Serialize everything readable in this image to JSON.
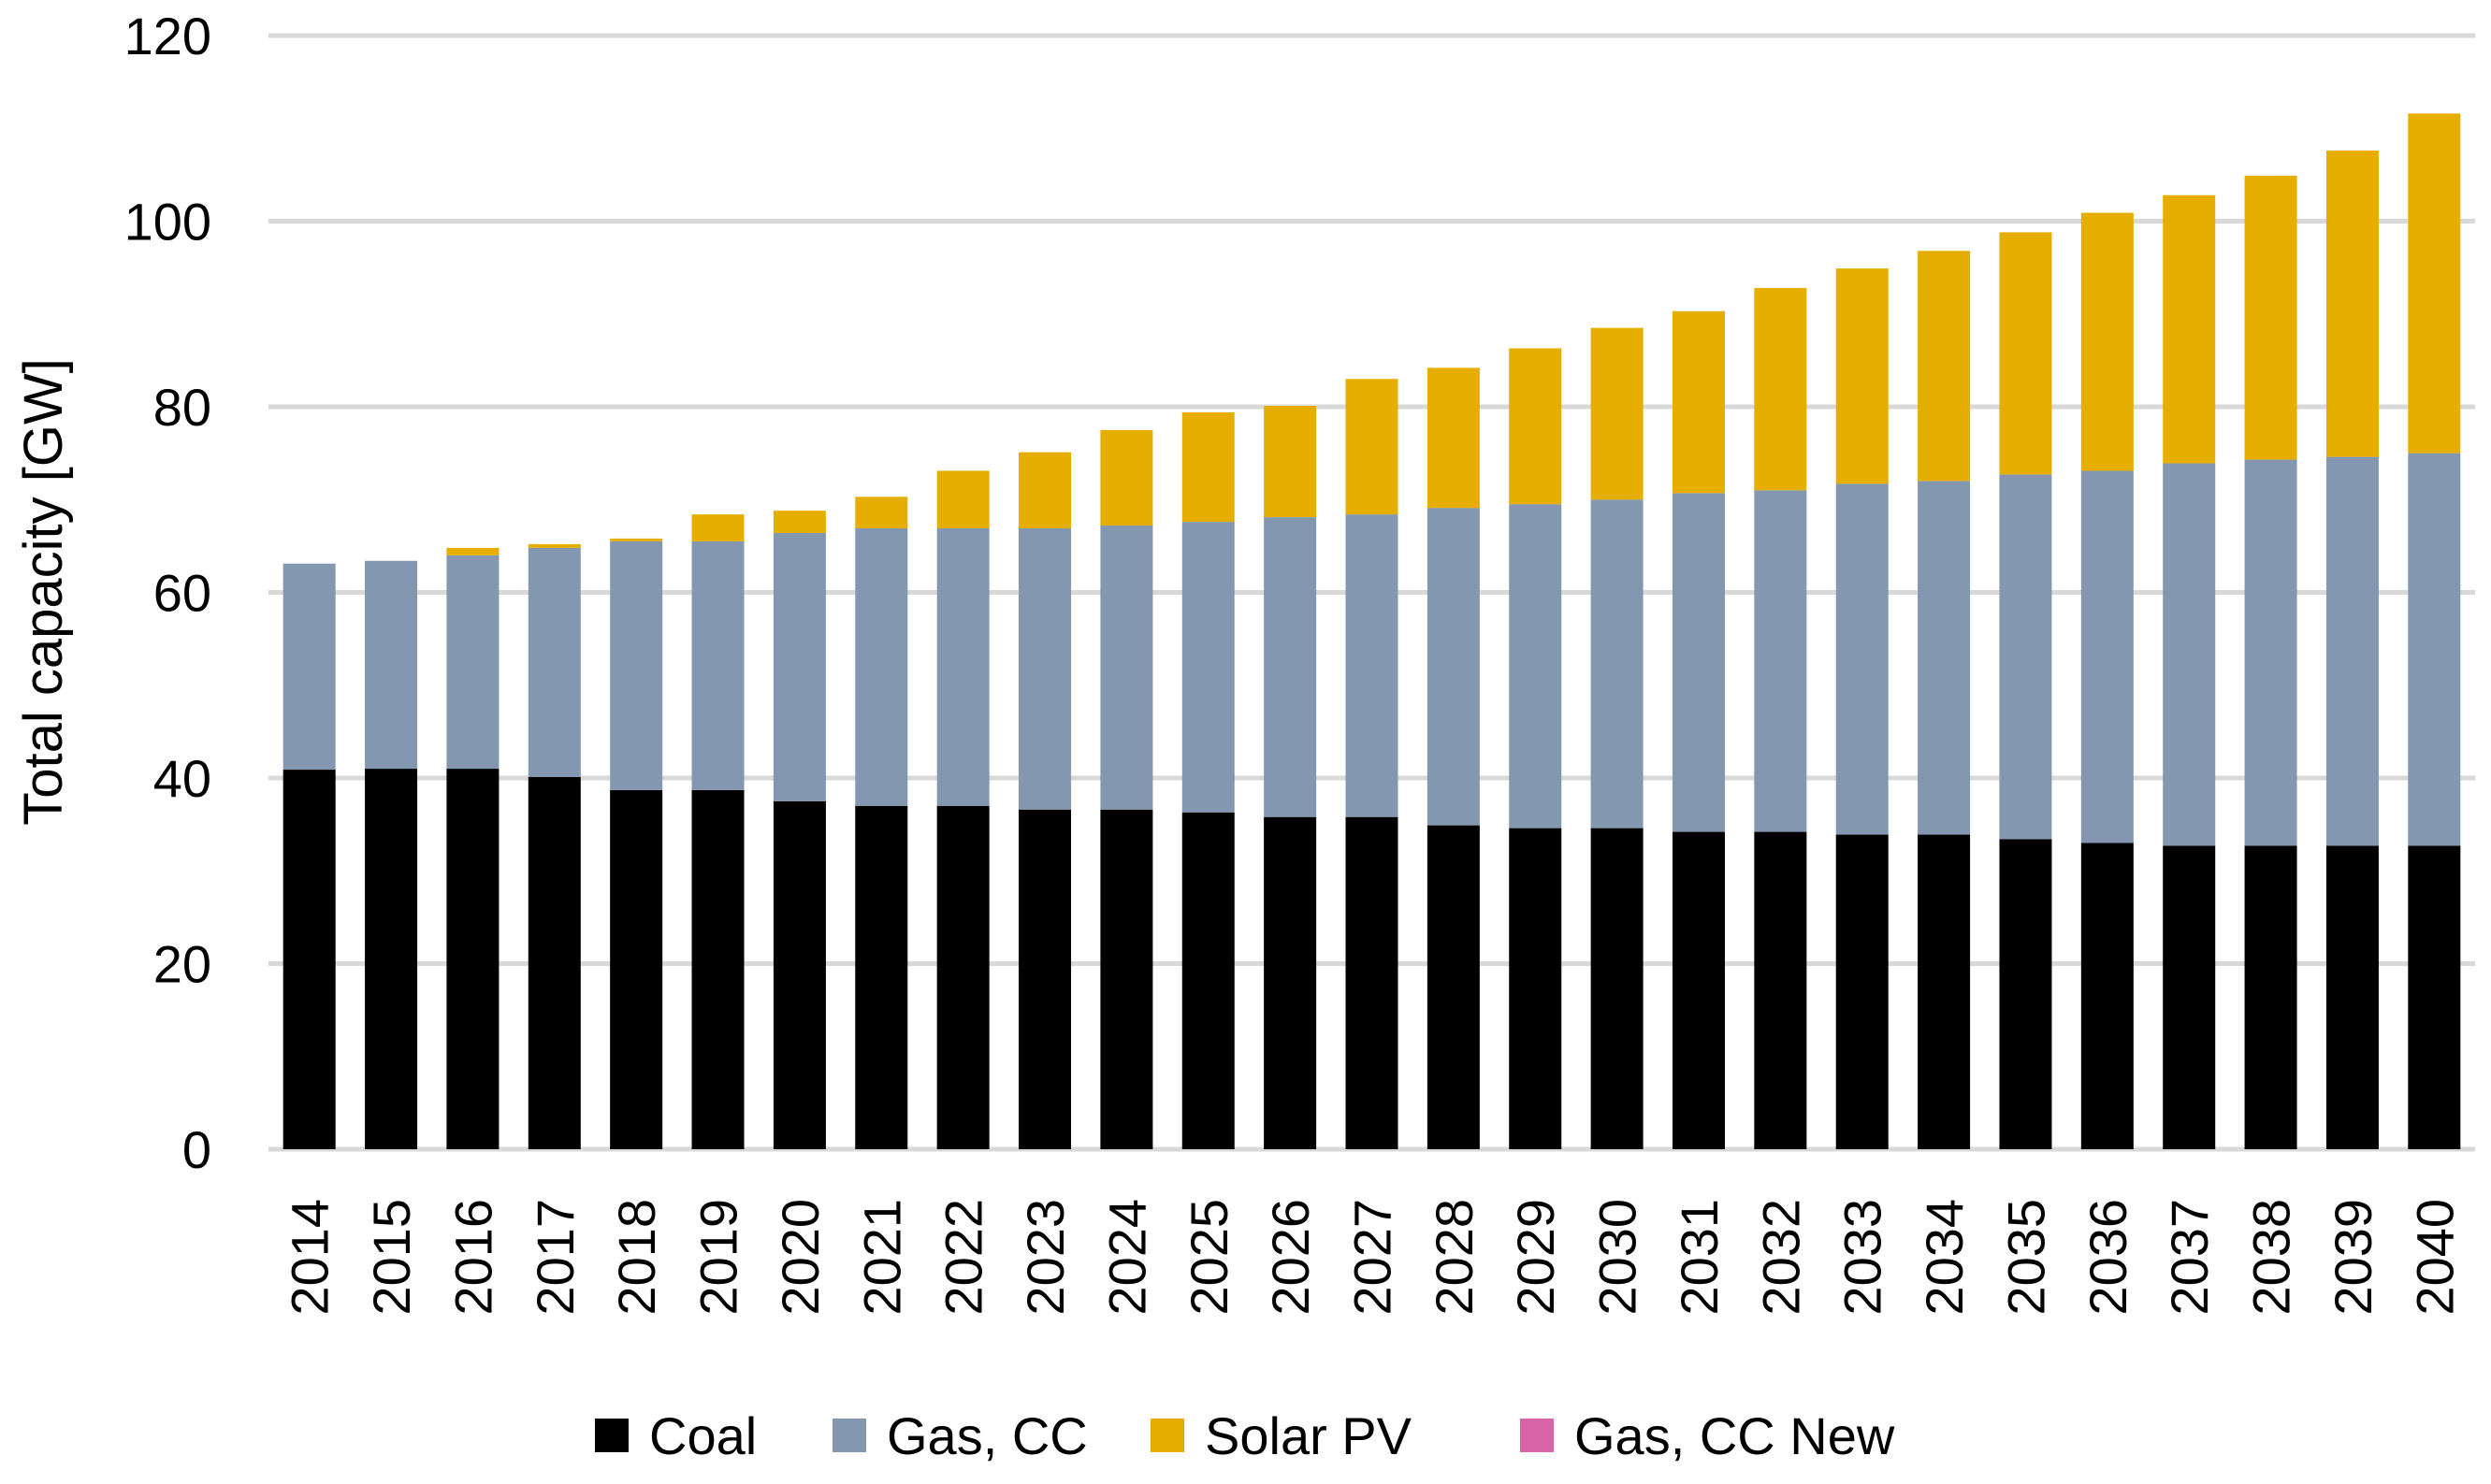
{
  "chart_data": {
    "type": "bar",
    "stacked": true,
    "title": "",
    "xlabel": "",
    "ylabel": "Total capacity [GW]",
    "ylim": [
      0,
      120
    ],
    "yticks": [
      0,
      20,
      40,
      60,
      80,
      100,
      120
    ],
    "grid": true,
    "legend_position": "bottom",
    "categories": [
      "2014",
      "2015",
      "2016",
      "2017",
      "2018",
      "2019",
      "2020",
      "2021",
      "2022",
      "2023",
      "2024",
      "2025",
      "2026",
      "2027",
      "2028",
      "2029",
      "2030",
      "2031",
      "2032",
      "2033",
      "2034",
      "2035",
      "2036",
      "2037",
      "2038",
      "2039",
      "2040"
    ],
    "series": [
      {
        "name": "Coal",
        "color": "#000000",
        "values": [
          40.9,
          41.0,
          41.0,
          40.1,
          38.7,
          38.7,
          37.5,
          37.0,
          37.0,
          36.6,
          36.6,
          36.3,
          35.8,
          35.8,
          34.9,
          34.6,
          34.6,
          34.2,
          34.2,
          33.9,
          33.9,
          33.4,
          33.0,
          32.7,
          32.7,
          32.7,
          32.7
        ]
      },
      {
        "name": "Gas, CC",
        "color": "#8497B0",
        "values": [
          22.2,
          22.4,
          23.0,
          24.7,
          26.8,
          26.8,
          28.9,
          29.9,
          29.9,
          30.3,
          30.6,
          31.3,
          32.3,
          32.6,
          34.2,
          34.9,
          35.4,
          36.5,
          36.8,
          37.8,
          38.1,
          39.3,
          40.1,
          41.2,
          41.6,
          41.9,
          42.3
        ]
      },
      {
        "name": "Solar PV",
        "color": "#E6AE00",
        "values": [
          0,
          0,
          0.8,
          0.4,
          0.3,
          2.9,
          2.4,
          3.4,
          6.2,
          8.2,
          10.3,
          11.8,
          12.0,
          14.6,
          15.1,
          16.8,
          18.5,
          19.6,
          21.8,
          23.2,
          24.8,
          26.1,
          27.8,
          28.9,
          30.6,
          33.0,
          36.6
        ]
      },
      {
        "name": "Gas, CC New",
        "color": "#D864A8",
        "values": [
          0,
          0,
          0,
          0,
          0,
          0,
          0,
          0,
          0,
          0,
          0,
          0,
          0,
          0,
          0,
          0,
          0,
          0,
          0,
          0,
          0,
          0,
          0,
          0,
          0,
          0,
          0
        ]
      }
    ]
  }
}
